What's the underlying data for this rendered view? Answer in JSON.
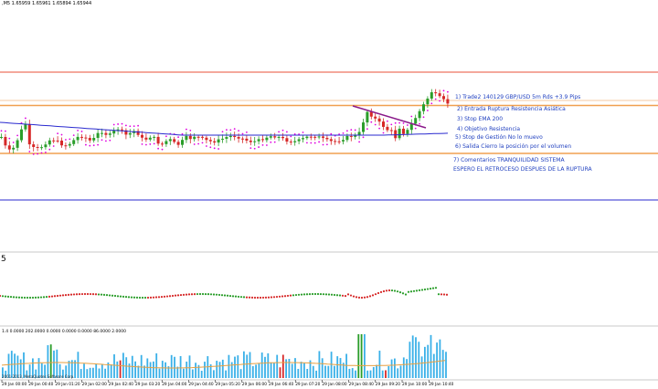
{
  "header": {
    "symbol_text": ",M5  1.65959 1.65961 1.65894 1.65944"
  },
  "subpane": {
    "label": "5"
  },
  "volume": {
    "header_text": "1.4  0.0000  202.0000  0.0000  0.0000  0.0000  86.0000  2.0000"
  },
  "footer": {
    "copyright": "2001-2013, MetaQuotes Software Corp."
  },
  "annotations": [
    "1) Trade2 140129 GBP/USD 5m Rds +3.9 Pips",
    "2) Entrada Ruptura Resistencia Asiática",
    "3) Stop EMA 200",
    "4) Objetivo Resistencia",
    "5) Stop de Gestión  No lo muevo",
    "6) Salida Cierro la posición por el volumen",
    "7) Comentarios  TRANQUILIDAD SISTEMA",
    "ESPERO EL RETROCESO DESPUES DE LA RUPTURA"
  ],
  "x_axis": {
    "labels": [
      "29 Jan 00:00",
      "29 Jan 00:40",
      "29 Jan 01:20",
      "29 Jan 02:00",
      "29 Jan 02:40",
      "29 Jan 03:20",
      "29 Jan 04:00",
      "29 Jan 04:40",
      "29 Jan 05:20",
      "29 Jan 06:00",
      "29 Jan 06:40",
      "29 Jan 07:20",
      "29 Jan 08:00",
      "29 Jan 08:40",
      "29 Jan 09:20",
      "29 Jan 10:00",
      "29 Jan 10:40"
    ]
  },
  "colors": {
    "bull": "#2a9d2a",
    "bear": "#d62828",
    "ema": "#2a2acf",
    "sar": "#e000e0",
    "resistance": "#e8503a",
    "orange": "#f0a050",
    "support_line": "#2a2acf",
    "trendline": "#8a1a8a",
    "volume_up": "#3ab0e8",
    "volume_big_green": "#2a9d2a",
    "volume_big_red": "#d62828",
    "volume_ma": "#e8a040"
  }
}
